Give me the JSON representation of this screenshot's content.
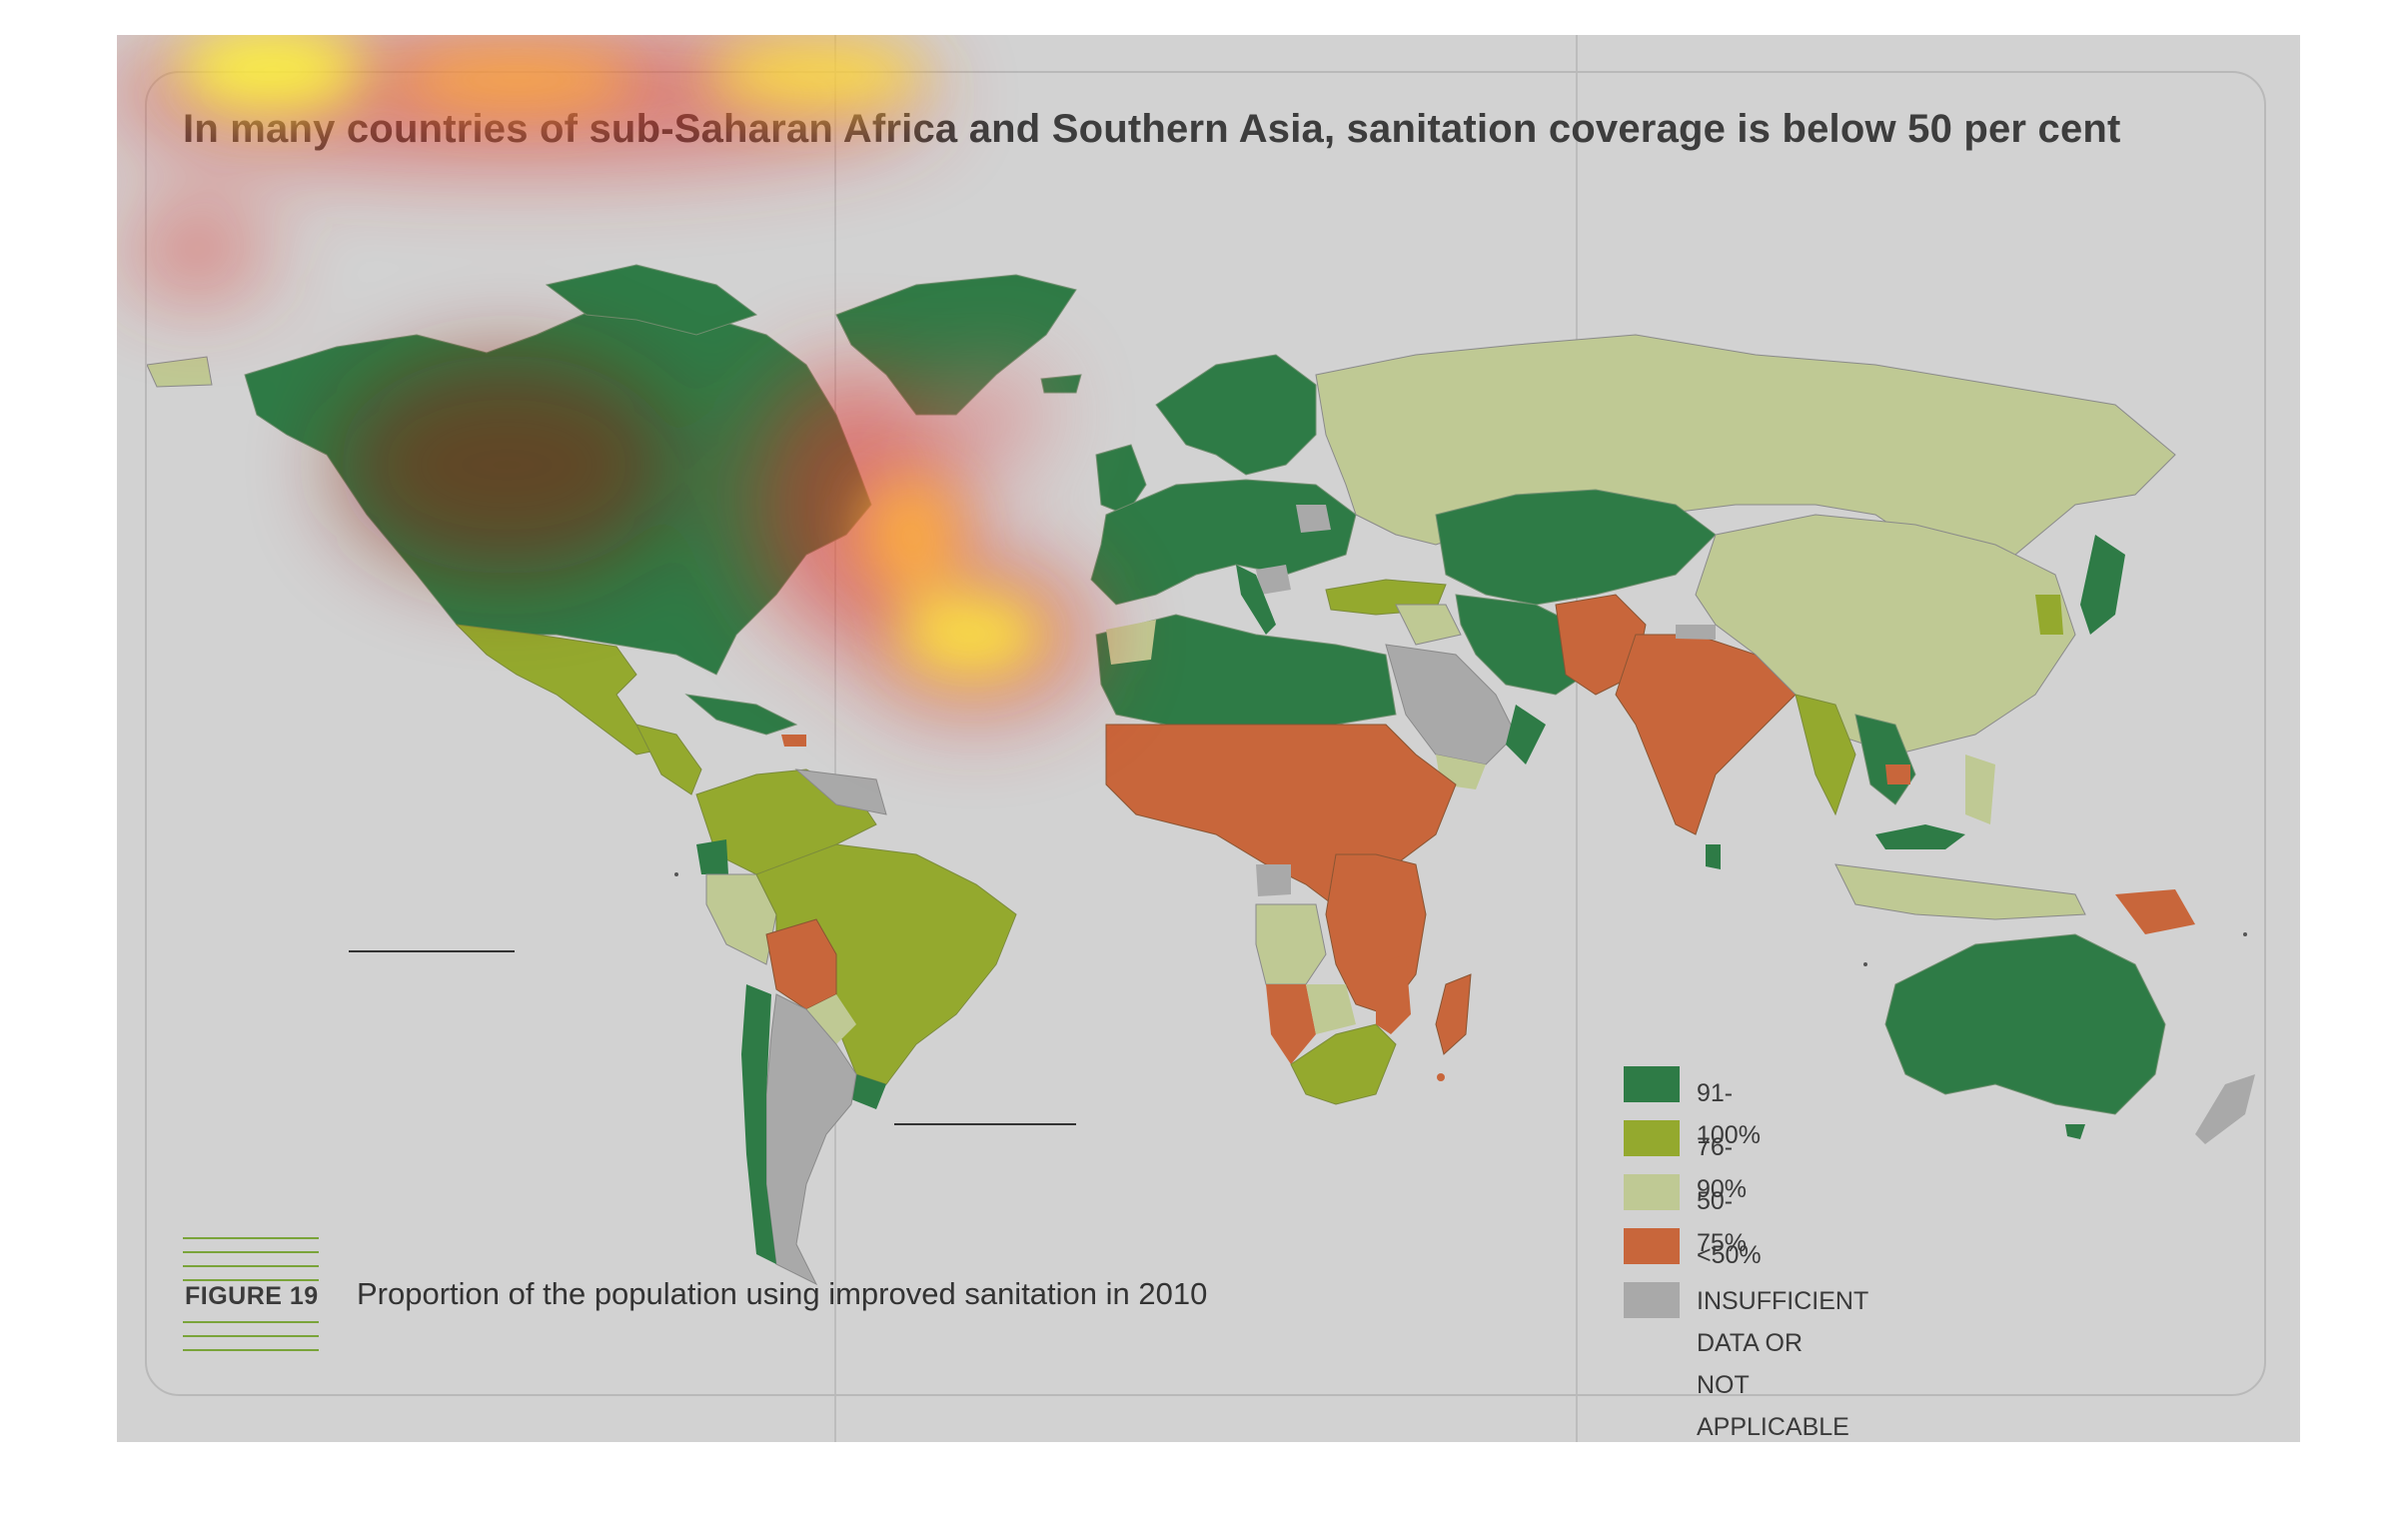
{
  "title": "In many countries of sub-Saharan Africa and Southern Asia, sanitation coverage is below 50 per cent",
  "figure": {
    "label": "FIGURE 19",
    "caption": "Proportion of the population using improved sanitation in 2010"
  },
  "legend": [
    {
      "label": "91-100%",
      "color": "#2e7b46"
    },
    {
      "label": "76-90%",
      "color": "#94a92e"
    },
    {
      "label": "50-75%",
      "color": "#bfc994"
    },
    {
      "label": "<50%",
      "color": "#c8663b"
    },
    {
      "label": "INSUFFICIENT DATA OR\nNOT APPLICABLE",
      "color": "#a9a9a9"
    }
  ],
  "colors": {
    "background": "#d2d2d2",
    "ocean": "#d2d2d2",
    "frame": "#b9b9b9",
    "caption_lines": "#7aa43a"
  },
  "overlay": "attention heatmap (yellow-red) over title and North Atlantic"
}
